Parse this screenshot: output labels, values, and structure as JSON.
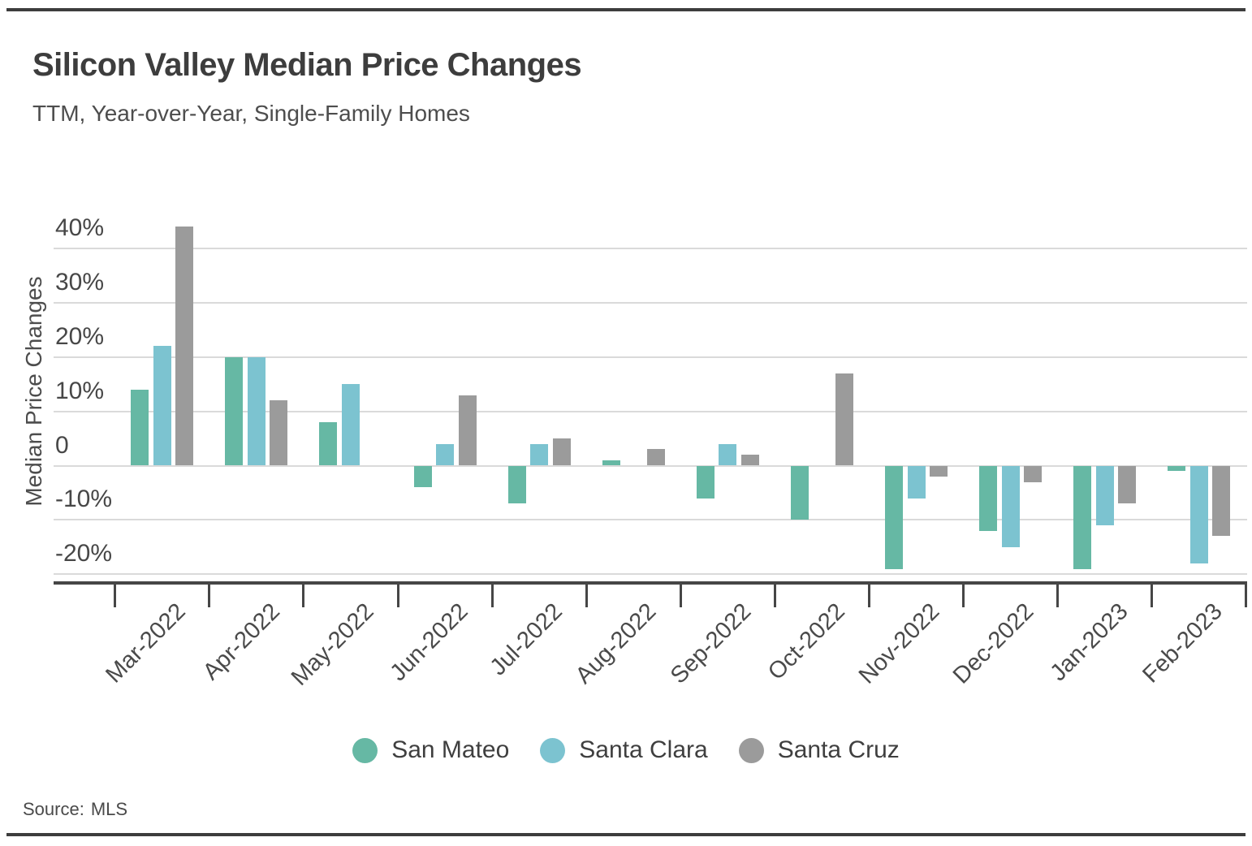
{
  "page": {
    "title": "Silicon Valley Median Price Changes",
    "subtitle": "TTM, Year-over-Year, Single-Family Homes",
    "source_label": "Source:",
    "source_value": "MLS"
  },
  "chart_data": {
    "type": "bar",
    "title": "Silicon Valley Median Price Changes",
    "subtitle": "TTM, Year-over-Year, Single-Family Homes",
    "xlabel": "",
    "ylabel": "Median Price Changes",
    "unit": "%",
    "grid": true,
    "legend_position": "bottom",
    "source": "MLS",
    "ylim": [
      -22,
      48
    ],
    "yticks": [
      {
        "value": 40,
        "label": "40%"
      },
      {
        "value": 30,
        "label": "30%"
      },
      {
        "value": 20,
        "label": "20%"
      },
      {
        "value": 10,
        "label": "10%"
      },
      {
        "value": 0,
        "label": "0"
      },
      {
        "value": -10,
        "label": "-10%"
      },
      {
        "value": -20,
        "label": "-20%"
      }
    ],
    "categories": [
      "Mar-2022",
      "Apr-2022",
      "May-2022",
      "Jun-2022",
      "Jul-2022",
      "Aug-2022",
      "Sep-2022",
      "Oct-2022",
      "Nov-2022",
      "Dec-2022",
      "Jan-2023",
      "Feb-2023"
    ],
    "series": [
      {
        "name": "San Mateo",
        "color": "#66b8a4",
        "values": [
          14,
          20,
          8,
          -4,
          -7,
          1,
          -6,
          -10,
          -19,
          -12,
          -19,
          -1
        ]
      },
      {
        "name": "Santa Clara",
        "color": "#7cc3d0",
        "values": [
          22,
          20,
          15,
          4,
          4,
          0,
          4,
          0,
          -6,
          -15,
          -11,
          -18
        ]
      },
      {
        "name": "Santa Cruz",
        "color": "#9b9b9b",
        "values": [
          44,
          12,
          0,
          13,
          5,
          3,
          2,
          17,
          -2,
          -3,
          -7,
          -13
        ]
      }
    ]
  }
}
